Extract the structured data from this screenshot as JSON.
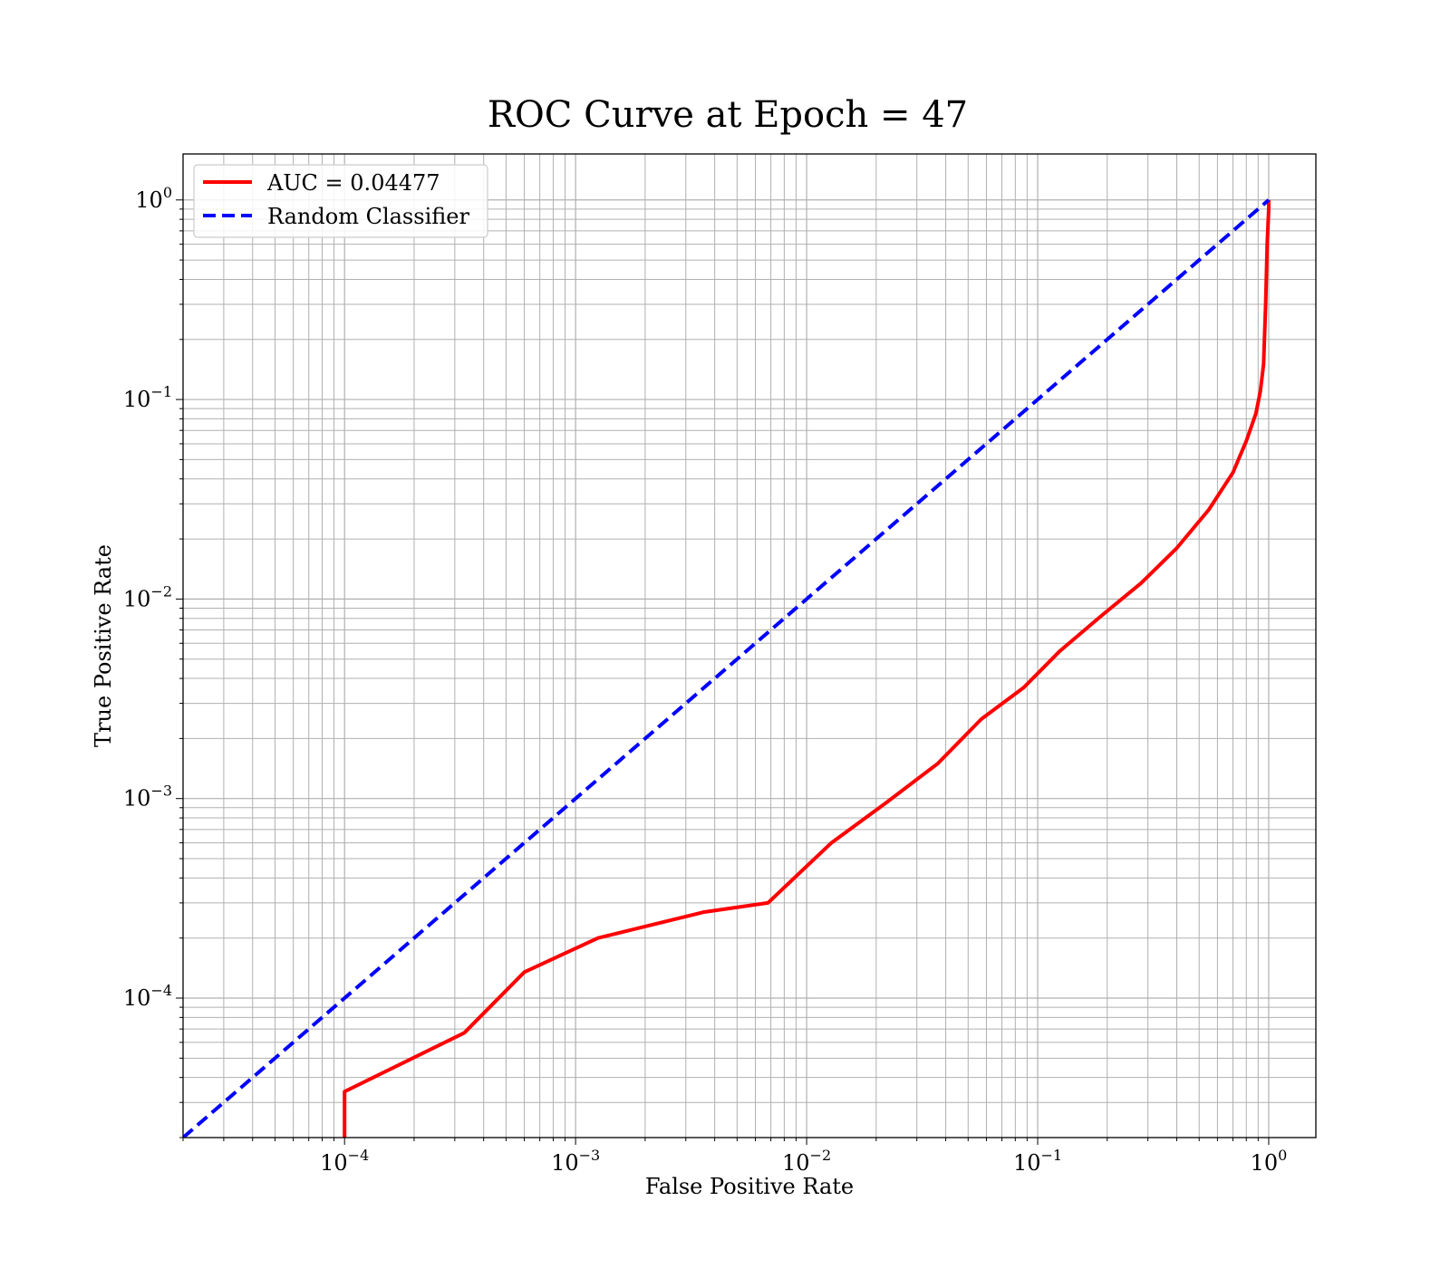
{
  "chart_data": {
    "type": "line",
    "title": "ROC Curve at Epoch = 47",
    "xlabel": "False Positive Rate",
    "ylabel": "True Positive Rate",
    "xscale": "log",
    "yscale": "log",
    "xlim": [
      2e-05,
      1.6
    ],
    "ylim": [
      2e-05,
      1.7
    ],
    "grid": true,
    "grid_minor": true,
    "legend_position": "upper-left",
    "x_ticks": [
      {
        "base": "10",
        "exp": "−4",
        "value": 0.0001
      },
      {
        "base": "10",
        "exp": "−3",
        "value": 0.001
      },
      {
        "base": "10",
        "exp": "−2",
        "value": 0.01
      },
      {
        "base": "10",
        "exp": "−1",
        "value": 0.1
      },
      {
        "base": "10",
        "exp": "0",
        "value": 1
      }
    ],
    "y_ticks": [
      {
        "base": "10",
        "exp": "−4",
        "value": 0.0001
      },
      {
        "base": "10",
        "exp": "−3",
        "value": 0.001
      },
      {
        "base": "10",
        "exp": "−2",
        "value": 0.01
      },
      {
        "base": "10",
        "exp": "−1",
        "value": 0.1
      },
      {
        "base": "10",
        "exp": "0",
        "value": 1
      }
    ],
    "series": [
      {
        "name": "AUC = 0.04477",
        "color": "#ff0000",
        "style": "solid",
        "x": [
          0.0001,
          0.0001,
          0.00033,
          0.0006,
          0.00125,
          0.0036,
          0.0068,
          0.0128,
          0.022,
          0.037,
          0.057,
          0.087,
          0.125,
          0.19,
          0.28,
          0.4,
          0.55,
          0.7,
          0.8,
          0.88,
          0.92,
          0.95,
          0.97,
          0.985,
          1.0,
          1.0
        ],
        "y": [
          2e-05,
          3.4e-05,
          6.7e-05,
          0.000135,
          0.0002,
          0.00027,
          0.0003,
          0.0006,
          0.00095,
          0.0015,
          0.0025,
          0.0036,
          0.0055,
          0.0083,
          0.012,
          0.018,
          0.028,
          0.043,
          0.062,
          0.085,
          0.11,
          0.15,
          0.3,
          0.6,
          0.9,
          1.0
        ]
      },
      {
        "name": "Random Classifier",
        "color": "#0000ff",
        "style": "dashed",
        "x": [
          2e-05,
          1.0
        ],
        "y": [
          2e-05,
          1.0
        ]
      }
    ]
  }
}
